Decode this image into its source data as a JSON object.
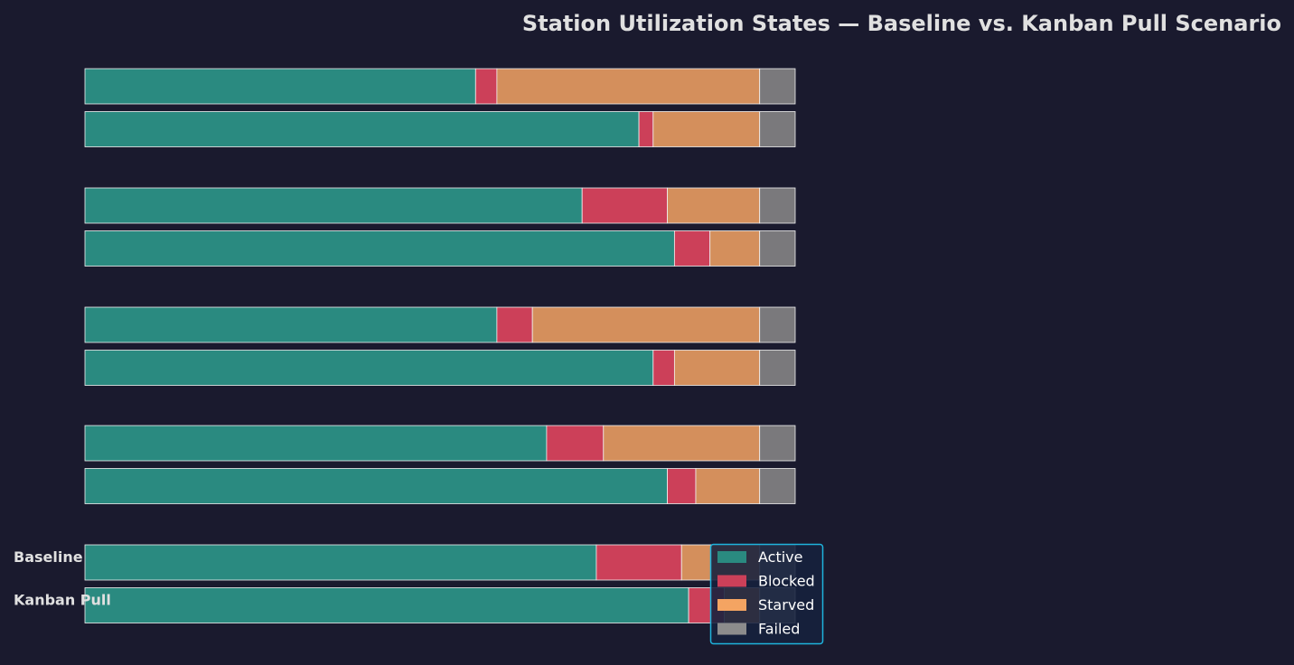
{
  "chart_data": {
    "type": "bar",
    "orientation": "horizontal",
    "stacked": true,
    "title": "Station Utilization States — Baseline vs. Kanban Pull Scenario",
    "xlabel": "",
    "ylabel": "",
    "xlim": [
      0,
      100
    ],
    "grid": false,
    "legend_position": "bottom-right",
    "scenarios": [
      "Baseline",
      "Kanban Pull"
    ],
    "states": [
      {
        "name": "Active",
        "color": "#2a8a80"
      },
      {
        "name": "Blocked",
        "color": "#cc4059"
      },
      {
        "name": "Starved",
        "color": "#d48f5c"
      },
      {
        "name": "Failed",
        "color": "#7a797c"
      }
    ],
    "legend_colors": [
      "#2a8a80",
      "#cc4059",
      "#f4a462",
      "#8c8c8c"
    ],
    "groups": [
      {
        "baseline": [
          55,
          3,
          37,
          5
        ],
        "kanban": [
          78,
          2,
          15,
          5
        ]
      },
      {
        "baseline": [
          70,
          12,
          13,
          5
        ],
        "kanban": [
          83,
          5,
          7,
          5
        ]
      },
      {
        "baseline": [
          58,
          5,
          32,
          5
        ],
        "kanban": [
          80,
          3,
          12,
          5
        ]
      },
      {
        "baseline": [
          65,
          8,
          22,
          5
        ],
        "kanban": [
          82,
          4,
          9,
          5
        ]
      },
      {
        "baseline": [
          72,
          12,
          11,
          5
        ],
        "kanban": [
          85,
          5,
          5,
          5
        ]
      }
    ]
  }
}
